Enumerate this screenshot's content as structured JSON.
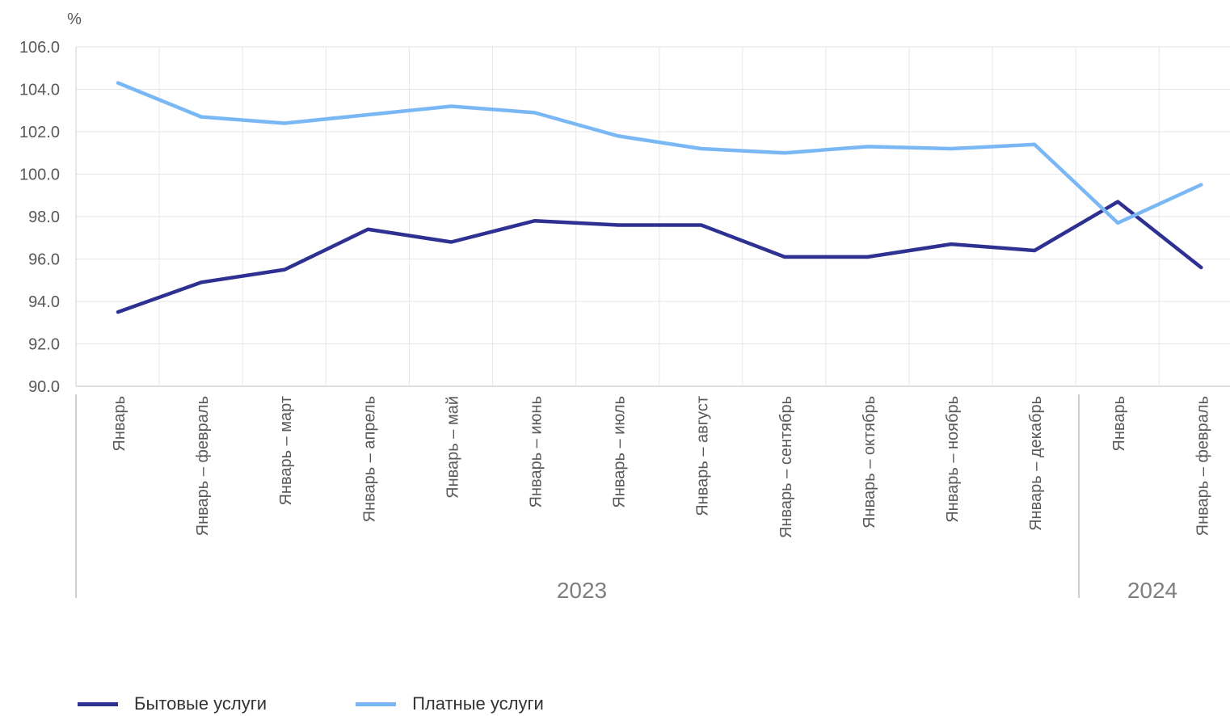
{
  "chart_data": {
    "type": "line",
    "unit_label": "%",
    "categories": [
      "Январь",
      "Январь – февраль",
      "Январь – март",
      "Январь – апрель",
      "Январь – май",
      "Январь – июнь",
      "Январь – июль",
      "Январь – август",
      "Январь – сентябрь",
      "Январь – октябрь",
      "Январь – ноябрь",
      "Январь – декабрь",
      "Январь",
      "Январь – февраль"
    ],
    "year_groups": [
      {
        "label": "2023",
        "start": 0,
        "end": 11
      },
      {
        "label": "2024",
        "start": 12,
        "end": 13
      }
    ],
    "ylim": [
      90,
      106
    ],
    "yticks": [
      "90.0",
      "92.0",
      "94.0",
      "96.0",
      "98.0",
      "100.0",
      "102.0",
      "104.0",
      "106.0"
    ],
    "grid": true,
    "legend_position": "bottom-left",
    "series": [
      {
        "name": "Бытовые услуги",
        "color": "#2e3192",
        "values": [
          93.5,
          94.9,
          95.5,
          97.4,
          96.8,
          97.8,
          97.6,
          97.6,
          96.1,
          96.1,
          96.7,
          96.4,
          98.7,
          95.6
        ]
      },
      {
        "name": "Платные услуги",
        "color": "#7ab8f5",
        "values": [
          104.3,
          102.7,
          102.4,
          102.8,
          103.2,
          102.9,
          101.8,
          101.2,
          101.0,
          101.3,
          101.2,
          101.4,
          97.7,
          99.5
        ]
      }
    ]
  }
}
